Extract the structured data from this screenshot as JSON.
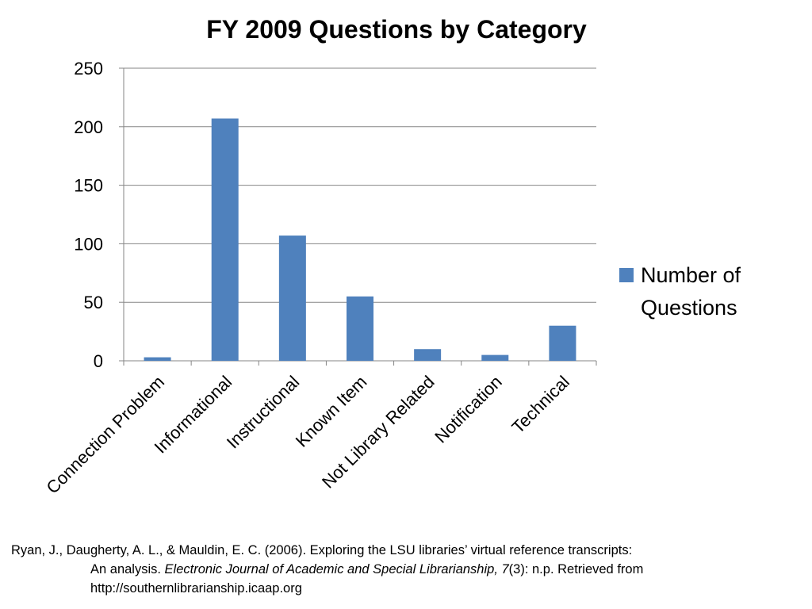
{
  "chart_data": {
    "type": "bar",
    "title": "FY 2009 Questions by Category",
    "categories": [
      "Connection Problem",
      "Informational",
      "Instructional",
      "Known Item",
      "Not Library Related",
      "Notification",
      "Technical"
    ],
    "series": [
      {
        "name": "Number of Questions",
        "values": [
          3,
          207,
          107,
          55,
          10,
          5,
          30
        ]
      }
    ],
    "ylim": [
      0,
      250
    ],
    "yticks": [
      "0",
      "50",
      "100",
      "150",
      "200",
      "250"
    ],
    "grid": true,
    "legend_position": "right",
    "legend_lines": [
      "Number of",
      "Questions"
    ],
    "bar_color": "#4f81bd"
  },
  "citation": {
    "line1": "Ryan, J., Daugherty, A. L., & Mauldin, E. C. (2006). Exploring the LSU libraries’ virtual reference transcripts:",
    "line2_plain": "An analysis. ",
    "line2_italic": "Electronic Journal of Academic and Special Librarianship, 7",
    "line2_rest": "(3): n.p. Retrieved from",
    "line3": "http://southernlibrarianship.icaap.org"
  }
}
